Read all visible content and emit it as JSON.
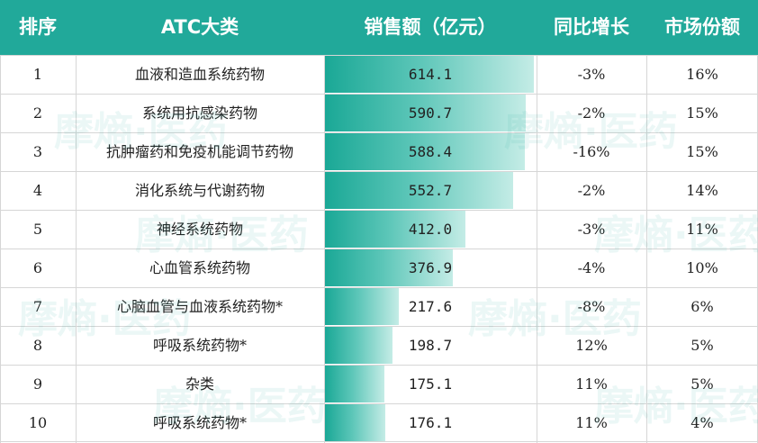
{
  "header": {
    "rank": "排序",
    "category": "ATC大类",
    "sales": "销售额（亿元）",
    "yoy": "同比增长",
    "share": "市场份额"
  },
  "watermark": "摩熵·医药",
  "colors": {
    "header_bg": "#21a99a",
    "bar_start": "#1aa896",
    "bar_end": "#c4ece6"
  },
  "chart_data": {
    "type": "table",
    "columns": [
      "排序",
      "ATC大类",
      "销售额（亿元）",
      "同比增长",
      "市场份额"
    ],
    "rows": [
      {
        "rank": "1",
        "category": "血液和造血系统药物",
        "sales": 614.1,
        "sales_label": "614.1",
        "yoy": "-3%",
        "share": "16%"
      },
      {
        "rank": "2",
        "category": "系统用抗感染药物",
        "sales": 590.7,
        "sales_label": "590.7",
        "yoy": "-2%",
        "share": "15%"
      },
      {
        "rank": "3",
        "category": "抗肿瘤药和免疫机能调节药物",
        "sales": 588.4,
        "sales_label": "588.4",
        "yoy": "-16%",
        "share": "15%"
      },
      {
        "rank": "4",
        "category": "消化系统与代谢药物",
        "sales": 552.7,
        "sales_label": "552.7",
        "yoy": "-2%",
        "share": "14%"
      },
      {
        "rank": "5",
        "category": "神经系统药物",
        "sales": 412.0,
        "sales_label": "412.0",
        "yoy": "-3%",
        "share": "11%"
      },
      {
        "rank": "6",
        "category": "心血管系统药物",
        "sales": 376.9,
        "sales_label": "376.9",
        "yoy": "-4%",
        "share": "10%"
      },
      {
        "rank": "7",
        "category": "心脑血管与血液系统药物*",
        "sales": 217.6,
        "sales_label": "217.6",
        "yoy": "-8%",
        "share": "6%"
      },
      {
        "rank": "8",
        "category": "呼吸系统药物*",
        "sales": 198.7,
        "sales_label": "198.7",
        "yoy": "12%",
        "share": "5%"
      },
      {
        "rank": "9",
        "category": "杂类",
        "sales": 175.1,
        "sales_label": "175.1",
        "yoy": "11%",
        "share": "5%"
      },
      {
        "rank": "10",
        "category": "呼吸系统药物*",
        "sales": 176.1,
        "sales_label": "176.1",
        "yoy": "11%",
        "share": "4%"
      }
    ],
    "bar_max": 614.1
  }
}
